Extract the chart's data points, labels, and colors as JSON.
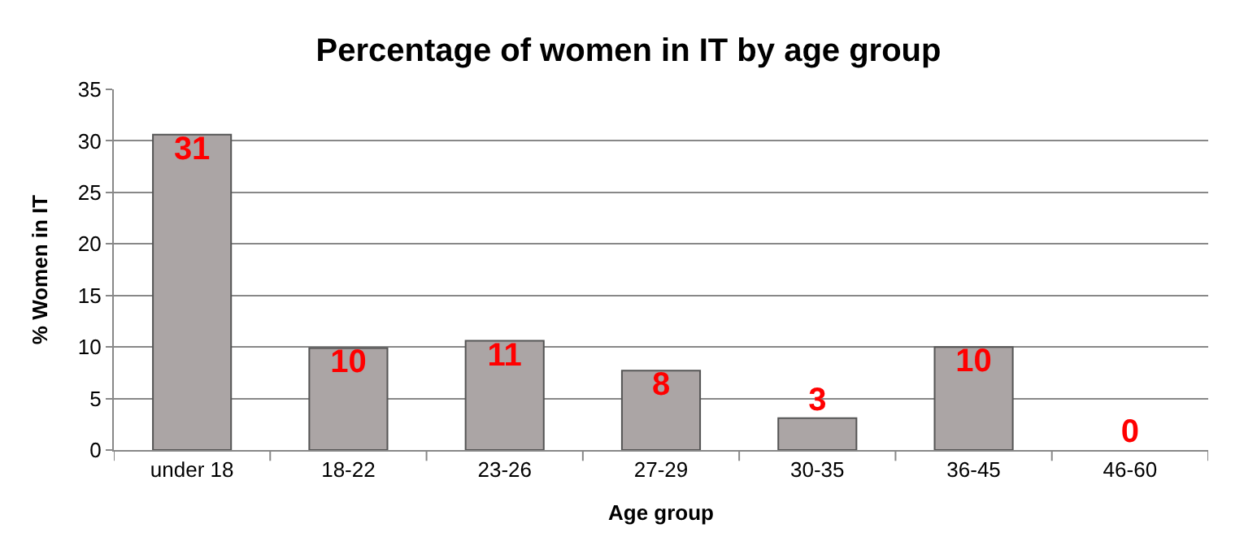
{
  "chart_data": {
    "type": "bar",
    "title": "Percentage of women in IT by age group",
    "xlabel": "Age group",
    "ylabel": "% Women in IT",
    "categories": [
      "under 18",
      "18-22",
      "23-26",
      "27-29",
      "30-35",
      "36-45",
      "46-60"
    ],
    "values": [
      30.6,
      9.9,
      10.6,
      7.7,
      3.1,
      10,
      0
    ],
    "value_labels": [
      "31",
      "10",
      "11",
      "8",
      "3",
      "10",
      "0"
    ],
    "color": "#aba5a5",
    "ylim": [
      0,
      35
    ],
    "yticks": [
      0,
      5,
      10,
      15,
      20,
      25,
      30,
      35
    ],
    "grid": "y",
    "legend": false
  }
}
